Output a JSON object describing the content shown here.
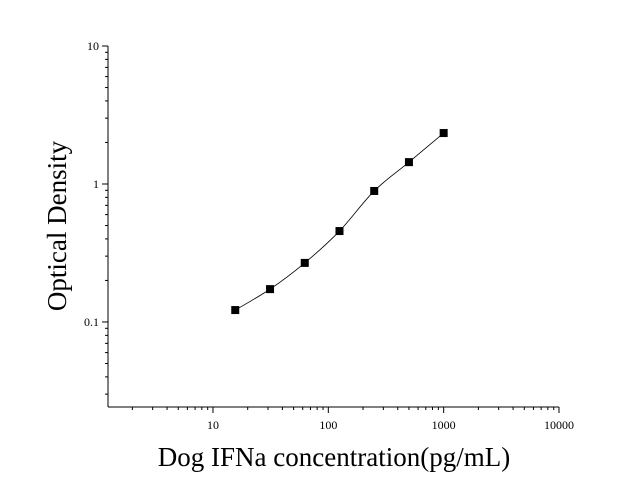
{
  "chart_data": {
    "type": "scatter",
    "x_label": "Dog IFNa concentration(pg/mL)",
    "y_label": "Optical Density",
    "x": [
      15.6,
      31.25,
      62.5,
      125,
      250,
      500,
      1000
    ],
    "series": [
      {
        "color": "#000000",
        "values": [
          0.122,
          0.173,
          0.268,
          0.456,
          0.89,
          1.44,
          2.34
        ]
      }
    ],
    "fit_curve": true,
    "xlog": true,
    "ylog": true,
    "xlim": [
      1.23,
      10000
    ],
    "ylim": [
      0.0242,
      10
    ],
    "xticks": [
      10,
      100,
      1000,
      10000
    ],
    "yticks": [
      0.1,
      1,
      10
    ]
  }
}
